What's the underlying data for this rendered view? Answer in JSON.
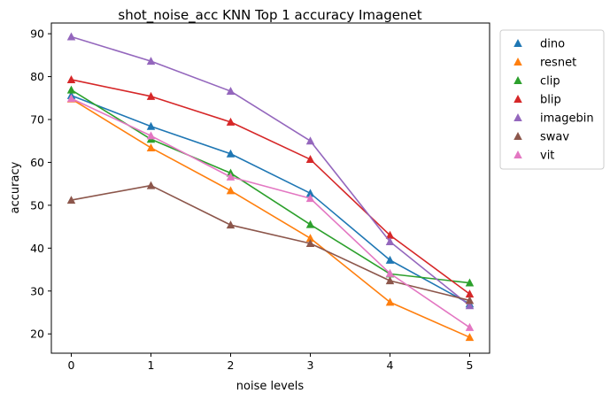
{
  "chart_data": {
    "type": "line",
    "title": "shot_noise_acc KNN Top 1 accuracy Imagenet",
    "xlabel": "noise levels",
    "ylabel": "accuracy",
    "x": [
      0,
      1,
      2,
      3,
      4,
      5
    ],
    "xlim": [
      -0.25,
      5.25
    ],
    "ylim": [
      15.5,
      92.5
    ],
    "xticks": [
      "0",
      "1",
      "2",
      "3",
      "4",
      "5"
    ],
    "yticks": [
      "20",
      "30",
      "40",
      "50",
      "60",
      "70",
      "80",
      "90"
    ],
    "grid": false,
    "legend_position": "outside-top-right",
    "marker": "triangle",
    "series": [
      {
        "name": "dino",
        "color": "#1f77b4",
        "values": [
          75.6,
          68.4,
          62.0,
          52.8,
          37.2,
          27.0
        ]
      },
      {
        "name": "resnet",
        "color": "#ff7f0e",
        "values": [
          74.8,
          63.4,
          53.4,
          42.3,
          27.4,
          19.2
        ]
      },
      {
        "name": "clip",
        "color": "#2ca02c",
        "values": [
          76.9,
          65.4,
          57.5,
          45.5,
          34.0,
          31.9
        ]
      },
      {
        "name": "blip",
        "color": "#d62728",
        "values": [
          79.3,
          75.4,
          69.4,
          60.7,
          43.0,
          29.3
        ]
      },
      {
        "name": "imagebin",
        "color": "#9467bd",
        "values": [
          89.3,
          83.6,
          76.6,
          65.0,
          41.5,
          26.6
        ]
      },
      {
        "name": "swav",
        "color": "#8c564b",
        "values": [
          51.2,
          54.6,
          45.4,
          41.1,
          32.4,
          27.8
        ]
      },
      {
        "name": "vit",
        "color": "#e377c2",
        "values": [
          74.9,
          66.2,
          56.6,
          51.6,
          34.1,
          21.5
        ]
      }
    ]
  }
}
